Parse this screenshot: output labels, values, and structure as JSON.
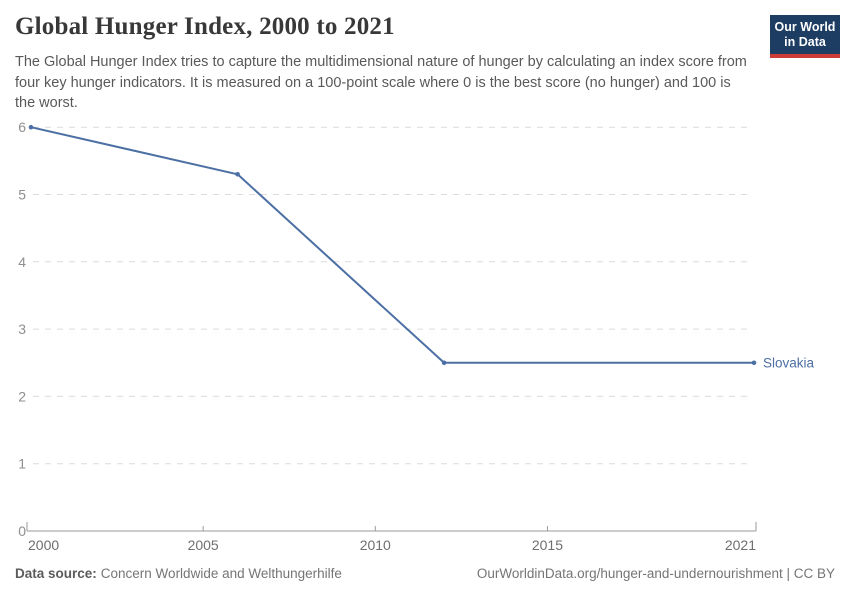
{
  "header": {
    "title": "Global Hunger Index, 2000 to 2021",
    "subtitle": "The Global Hunger Index tries to capture the multidimensional nature of hunger by calculating an index score from four key hunger indicators. It is measured on a 100-point scale where 0 is the best score (no hunger) and 100 is the worst.",
    "logo": {
      "line1": "Our World",
      "line2": "in Data",
      "bg_color": "#1d3d63",
      "accent_color": "#cc3b35"
    }
  },
  "chart_data": {
    "type": "line",
    "title": "Global Hunger Index, 2000 to 2021",
    "x": [
      2000,
      2006,
      2012,
      2021
    ],
    "series": [
      {
        "name": "Slovakia",
        "values": [
          6.0,
          5.3,
          2.5,
          2.5
        ],
        "color": "#4c6fa4"
      }
    ],
    "x_ticks": [
      2000,
      2005,
      2010,
      2015,
      2021
    ],
    "y_ticks": [
      0,
      1,
      2,
      3,
      4,
      5,
      6
    ],
    "xlim": [
      2000,
      2021
    ],
    "ylim": [
      0,
      6
    ],
    "xlabel": "",
    "ylabel": "",
    "grid": "horizontal-dashed",
    "legend_position": "end-of-line",
    "colors": {
      "gridline": "#dcdcdc",
      "axis": "#9a9a9a",
      "y_tick_label": "#8f8f8f",
      "x_tick_label": "#6f6f6f"
    }
  },
  "footer": {
    "source_label": "Data source:",
    "source_text": "Concern Worldwide and Welthungerhilfe",
    "link_text": "OurWorldinData.org/hunger-and-undernourishment | CC BY"
  }
}
